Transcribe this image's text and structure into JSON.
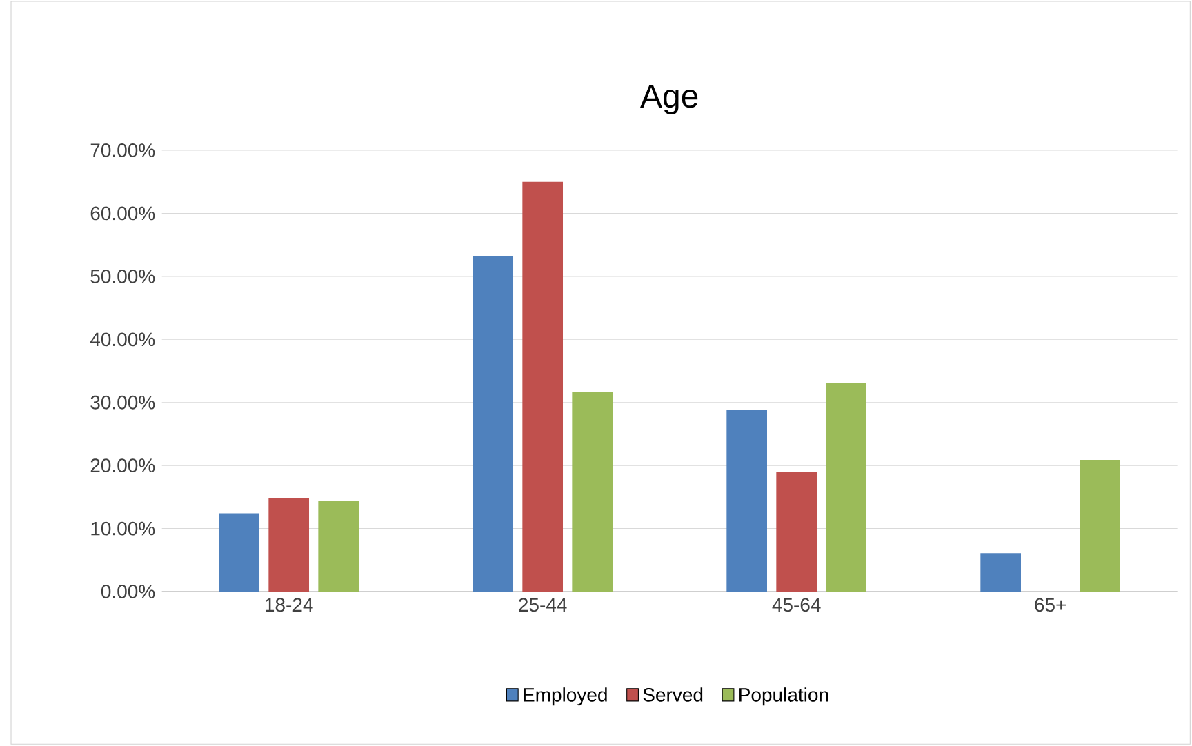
{
  "chart_data": {
    "type": "bar",
    "title": "Age",
    "categories": [
      "18-24",
      "25-44",
      "45-64",
      "65+"
    ],
    "series": [
      {
        "name": "Employed",
        "color": "#4f81bd",
        "values": [
          12.4,
          53.2,
          28.8,
          6.1
        ]
      },
      {
        "name": "Served",
        "color": "#c0504d",
        "values": [
          14.8,
          65.0,
          19.0,
          0
        ]
      },
      {
        "name": "Population",
        "color": "#9bbb59",
        "values": [
          14.4,
          31.6,
          33.1,
          20.9
        ]
      }
    ],
    "ylim": [
      0,
      70
    ],
    "yticks": [
      {
        "value": 0,
        "label": "0.00%"
      },
      {
        "value": 10,
        "label": "10.00%"
      },
      {
        "value": 20,
        "label": "20.00%"
      },
      {
        "value": 30,
        "label": "30.00%"
      },
      {
        "value": 40,
        "label": "40.00%"
      },
      {
        "value": 50,
        "label": "50.00%"
      },
      {
        "value": 60,
        "label": "60.00%"
      },
      {
        "value": 70,
        "label": "70.00%"
      }
    ],
    "grid": "y",
    "legend": "bottom"
  }
}
